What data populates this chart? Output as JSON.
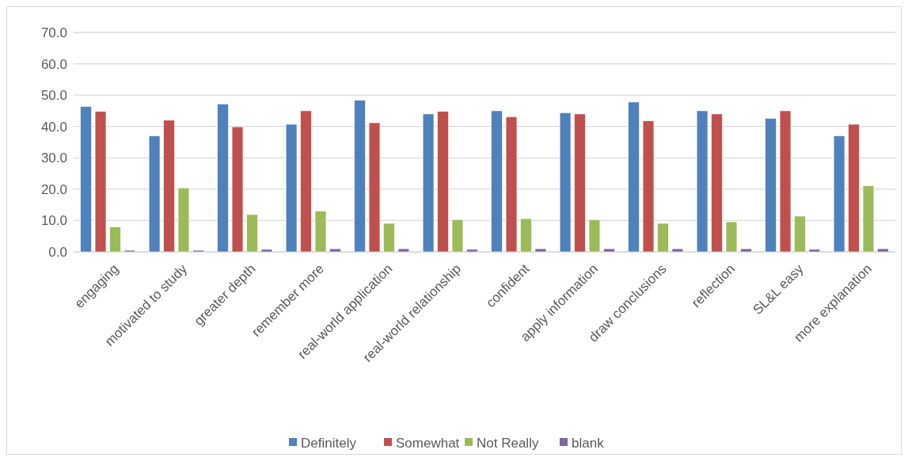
{
  "chart_data": {
    "type": "bar",
    "categories": [
      "engaging",
      "motivated to study",
      "greater depth",
      "remember more",
      "real-world application",
      "real-world relationship",
      "confident",
      "apply information",
      "draw conclusions",
      "reflection",
      "SL&L easy",
      "more explanation"
    ],
    "series": [
      {
        "name": "Definitely",
        "color": "#4f81bd",
        "values": [
          46.4,
          37.0,
          47.2,
          40.7,
          48.4,
          44.0,
          45.0,
          44.4,
          47.8,
          45.0,
          42.6,
          37.0
        ]
      },
      {
        "name": "Somewhat",
        "color": "#c0504d",
        "values": [
          44.8,
          42.0,
          39.9,
          45.0,
          41.2,
          44.8,
          43.1,
          44.0,
          41.8,
          44.0,
          45.0,
          40.7
        ]
      },
      {
        "name": "Not Really",
        "color": "#9bbb59",
        "values": [
          8.0,
          20.4,
          11.9,
          13.0,
          9.1,
          10.3,
          10.6,
          10.3,
          9.1,
          9.6,
          11.4,
          21.1
        ]
      },
      {
        "name": "blank",
        "color": "#8064a2",
        "values": [
          0.5,
          0.5,
          0.8,
          1.0,
          1.0,
          0.8,
          1.0,
          1.0,
          1.0,
          1.0,
          0.8,
          1.0
        ]
      }
    ],
    "ylim": [
      0,
      70
    ],
    "yticks": [
      {
        "value": 0,
        "label": "0.0"
      },
      {
        "value": 10,
        "label": "10.0"
      },
      {
        "value": 20,
        "label": "20.0"
      },
      {
        "value": 30,
        "label": "30.0"
      },
      {
        "value": 40,
        "label": "40.0"
      },
      {
        "value": 50,
        "label": "50.0"
      },
      {
        "value": 60,
        "label": "60.0"
      },
      {
        "value": 70,
        "label": "70.0"
      }
    ],
    "grid": "y",
    "legend": "bottom"
  }
}
